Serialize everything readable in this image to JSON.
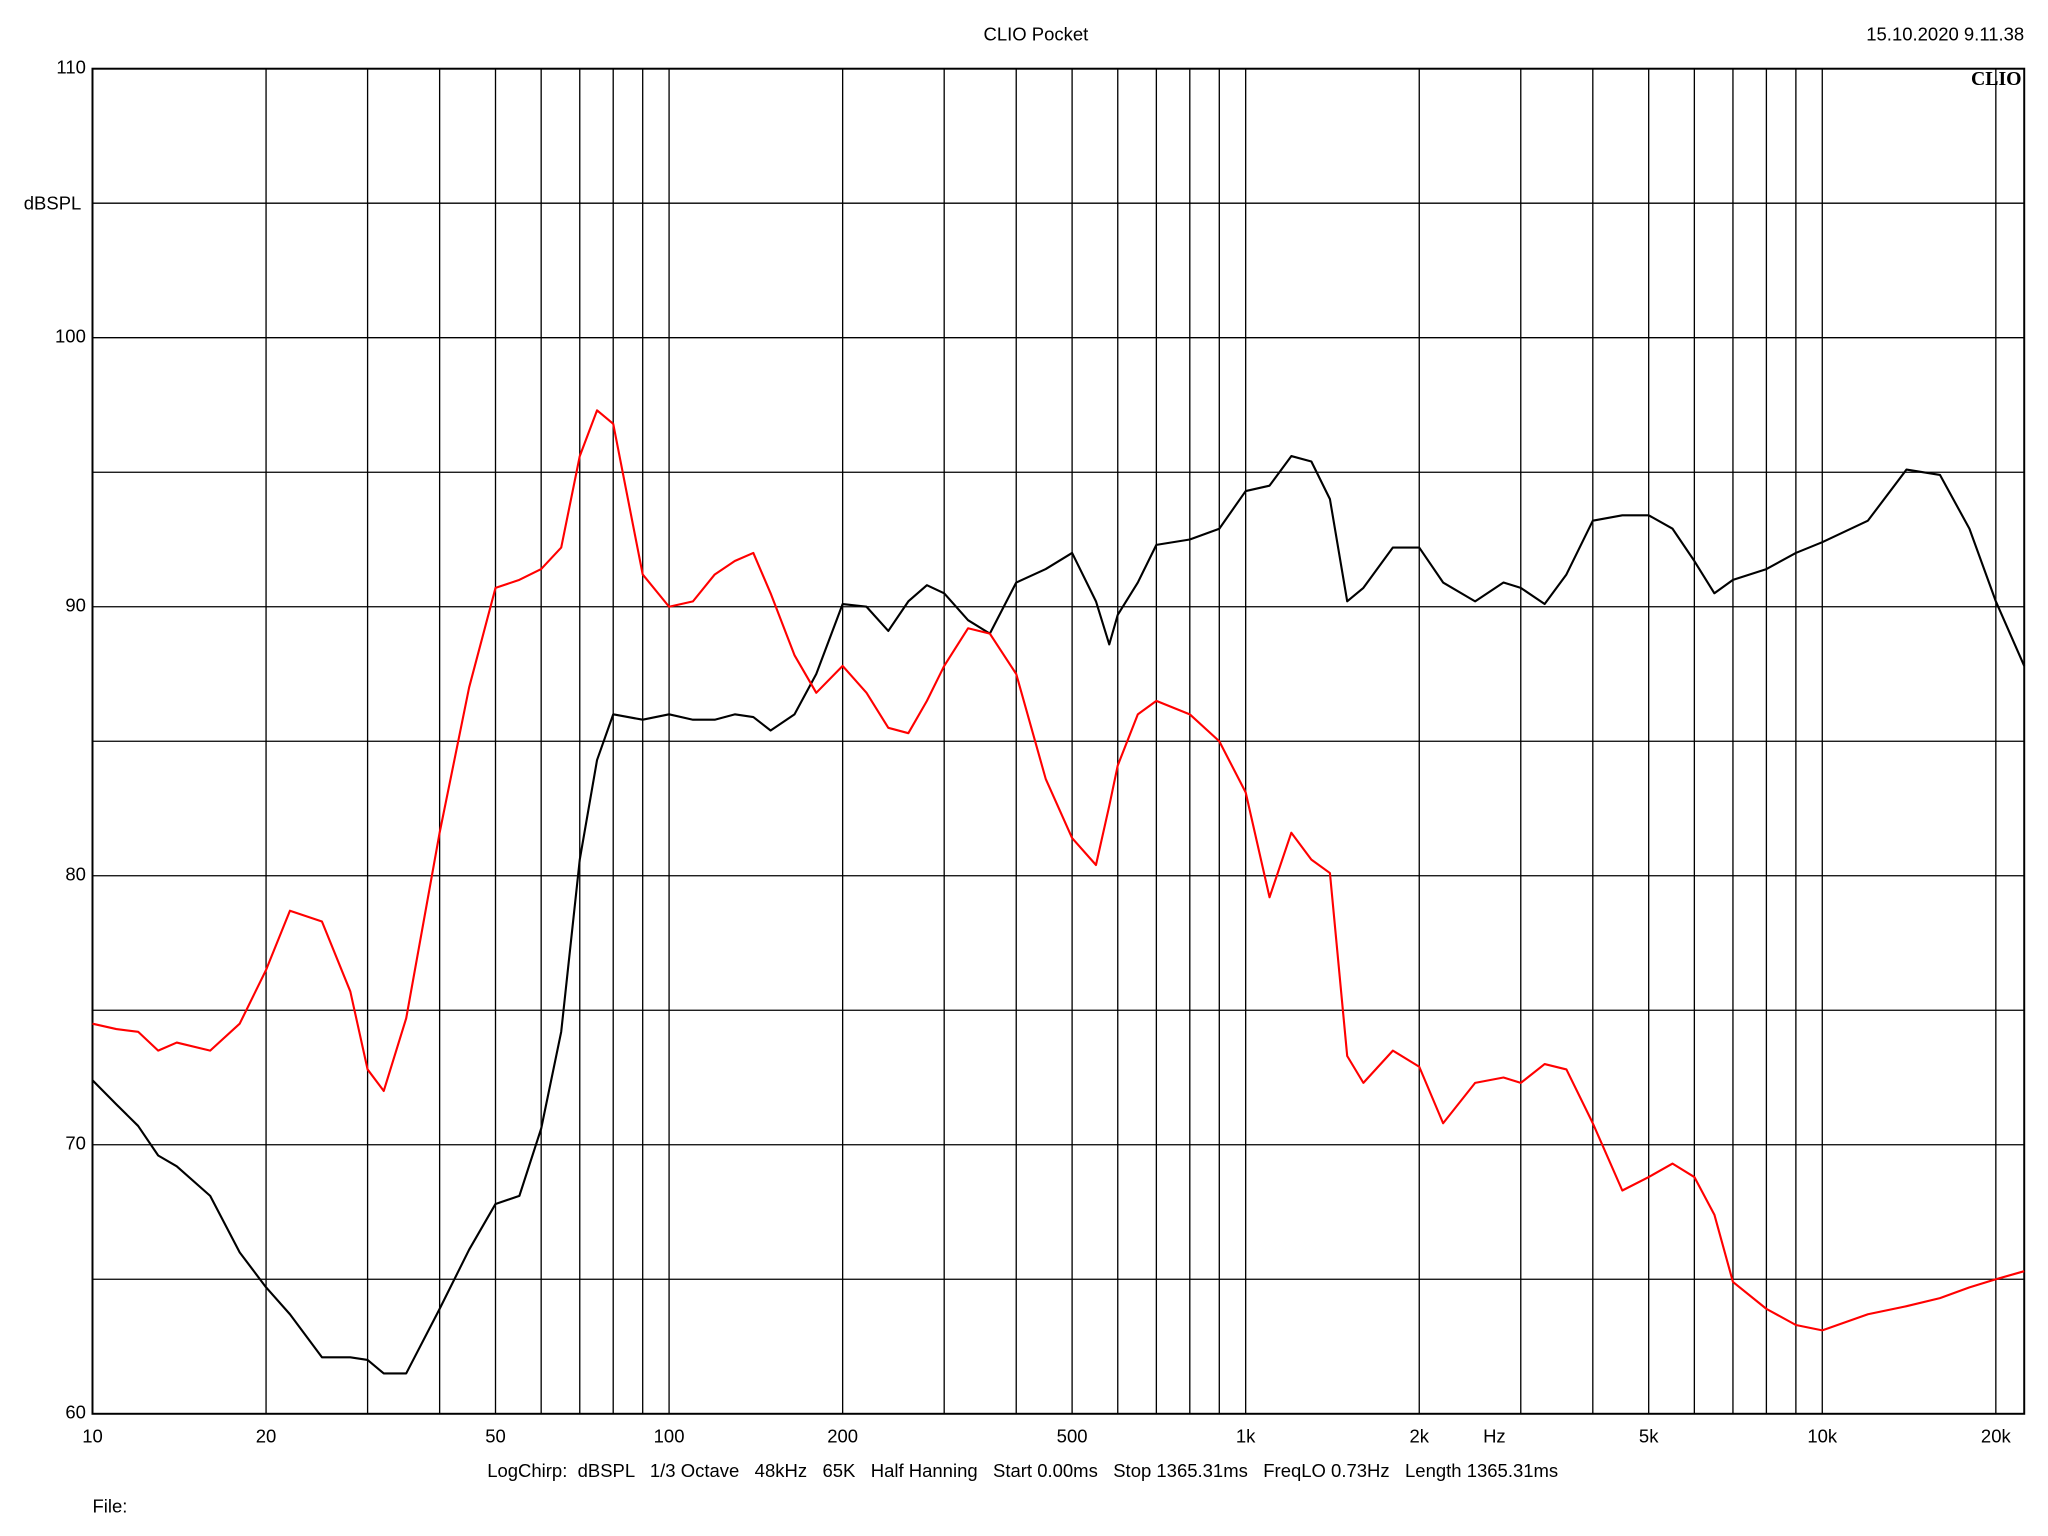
{
  "chart_data": {
    "type": "line",
    "title": "CLIO Pocket",
    "timestamp": "15.10.2020 9.11.38",
    "logo": "CLIO",
    "y_label": "dBSPL",
    "x_label": "Hz",
    "footer": "LogChirp:  dBSPL   1/3 Octave   48kHz   65K   Half Hanning   Start 0.00ms   Stop 1365.31ms   FreqLO 0.73Hz   Length 1365.31ms",
    "file_label": "File:",
    "x_log": true,
    "grid": true,
    "xlim": [
      10,
      22400
    ],
    "ylim": [
      60,
      110
    ],
    "xticks": [
      10,
      20,
      50,
      100,
      200,
      500,
      {
        "value": 1000,
        "label": "1k"
      },
      {
        "value": 2000,
        "label": "2k"
      },
      {
        "value": 5000,
        "label": "5k"
      },
      {
        "value": 10000,
        "label": "10k"
      },
      {
        "value": 20000,
        "label": "20k"
      }
    ],
    "x_minor_grid": [
      30,
      40,
      60,
      70,
      80,
      90,
      300,
      400,
      600,
      700,
      800,
      900,
      3000,
      4000,
      6000,
      7000,
      8000,
      9000
    ],
    "yticks": [
      60,
      70,
      80,
      90,
      100,
      110
    ],
    "y_minor_grid": [
      65,
      75,
      85,
      95,
      105
    ],
    "x": [
      10,
      11,
      12,
      13,
      14,
      16,
      18,
      20,
      22,
      25,
      28,
      30,
      32,
      35,
      40,
      45,
      50,
      55,
      60,
      65,
      70,
      75,
      80,
      90,
      100,
      110,
      120,
      130,
      140,
      150,
      165,
      180,
      200,
      220,
      240,
      260,
      280,
      300,
      330,
      360,
      400,
      450,
      500,
      550,
      580,
      600,
      650,
      700,
      800,
      900,
      1000,
      1100,
      1200,
      1300,
      1400,
      1500,
      1600,
      1800,
      2000,
      2200,
      2500,
      2800,
      3000,
      3300,
      3600,
      4000,
      4500,
      5000,
      5500,
      6000,
      6500,
      7000,
      8000,
      9000,
      10000,
      12000,
      14000,
      16000,
      18000,
      20000,
      22400
    ],
    "series": [
      {
        "color": "#000000",
        "values": [
          72.4,
          71.5,
          70.7,
          69.6,
          69.2,
          68.1,
          66.0,
          64.7,
          63.7,
          62.1,
          62.1,
          62.0,
          61.5,
          61.5,
          63.9,
          66.1,
          67.8,
          68.1,
          70.6,
          74.2,
          80.6,
          84.3,
          86.0,
          85.8,
          86.0,
          85.8,
          85.8,
          86.0,
          85.9,
          85.4,
          86.0,
          87.5,
          90.1,
          90.0,
          89.1,
          90.2,
          90.8,
          90.5,
          89.5,
          89.0,
          90.9,
          91.4,
          92.0,
          90.2,
          88.6,
          89.7,
          90.9,
          92.3,
          92.5,
          92.9,
          94.3,
          94.5,
          95.6,
          95.4,
          94.0,
          90.2,
          90.7,
          92.2,
          92.2,
          90.9,
          90.2,
          90.9,
          90.7,
          90.1,
          91.2,
          93.2,
          93.4,
          93.4,
          92.9,
          91.7,
          90.5,
          91.0,
          91.4,
          92.0,
          92.4,
          93.2,
          95.1,
          94.9,
          92.9,
          90.2,
          87.8
        ]
      },
      {
        "color": "#ff0000",
        "values": [
          74.5,
          74.3,
          74.2,
          73.5,
          73.8,
          73.5,
          74.5,
          76.5,
          78.7,
          78.3,
          75.7,
          72.8,
          72.0,
          74.7,
          81.6,
          87.0,
          90.7,
          91.0,
          91.4,
          92.2,
          95.6,
          97.3,
          96.8,
          91.2,
          90.0,
          90.2,
          91.2,
          91.7,
          92.0,
          90.5,
          88.2,
          86.8,
          87.8,
          86.8,
          85.5,
          85.3,
          86.5,
          87.8,
          89.2,
          89.0,
          87.5,
          83.6,
          81.4,
          80.4,
          82.6,
          84.1,
          86.0,
          86.5,
          86.0,
          85.0,
          83.1,
          79.2,
          81.6,
          80.6,
          80.1,
          73.3,
          72.3,
          73.5,
          72.9,
          70.8,
          72.3,
          72.5,
          72.3,
          73.0,
          72.8,
          70.8,
          68.3,
          68.8,
          69.3,
          68.8,
          67.4,
          64.9,
          63.9,
          63.3,
          63.1,
          63.7,
          64.0,
          64.3,
          64.7,
          65.0,
          65.3
        ]
      }
    ]
  }
}
